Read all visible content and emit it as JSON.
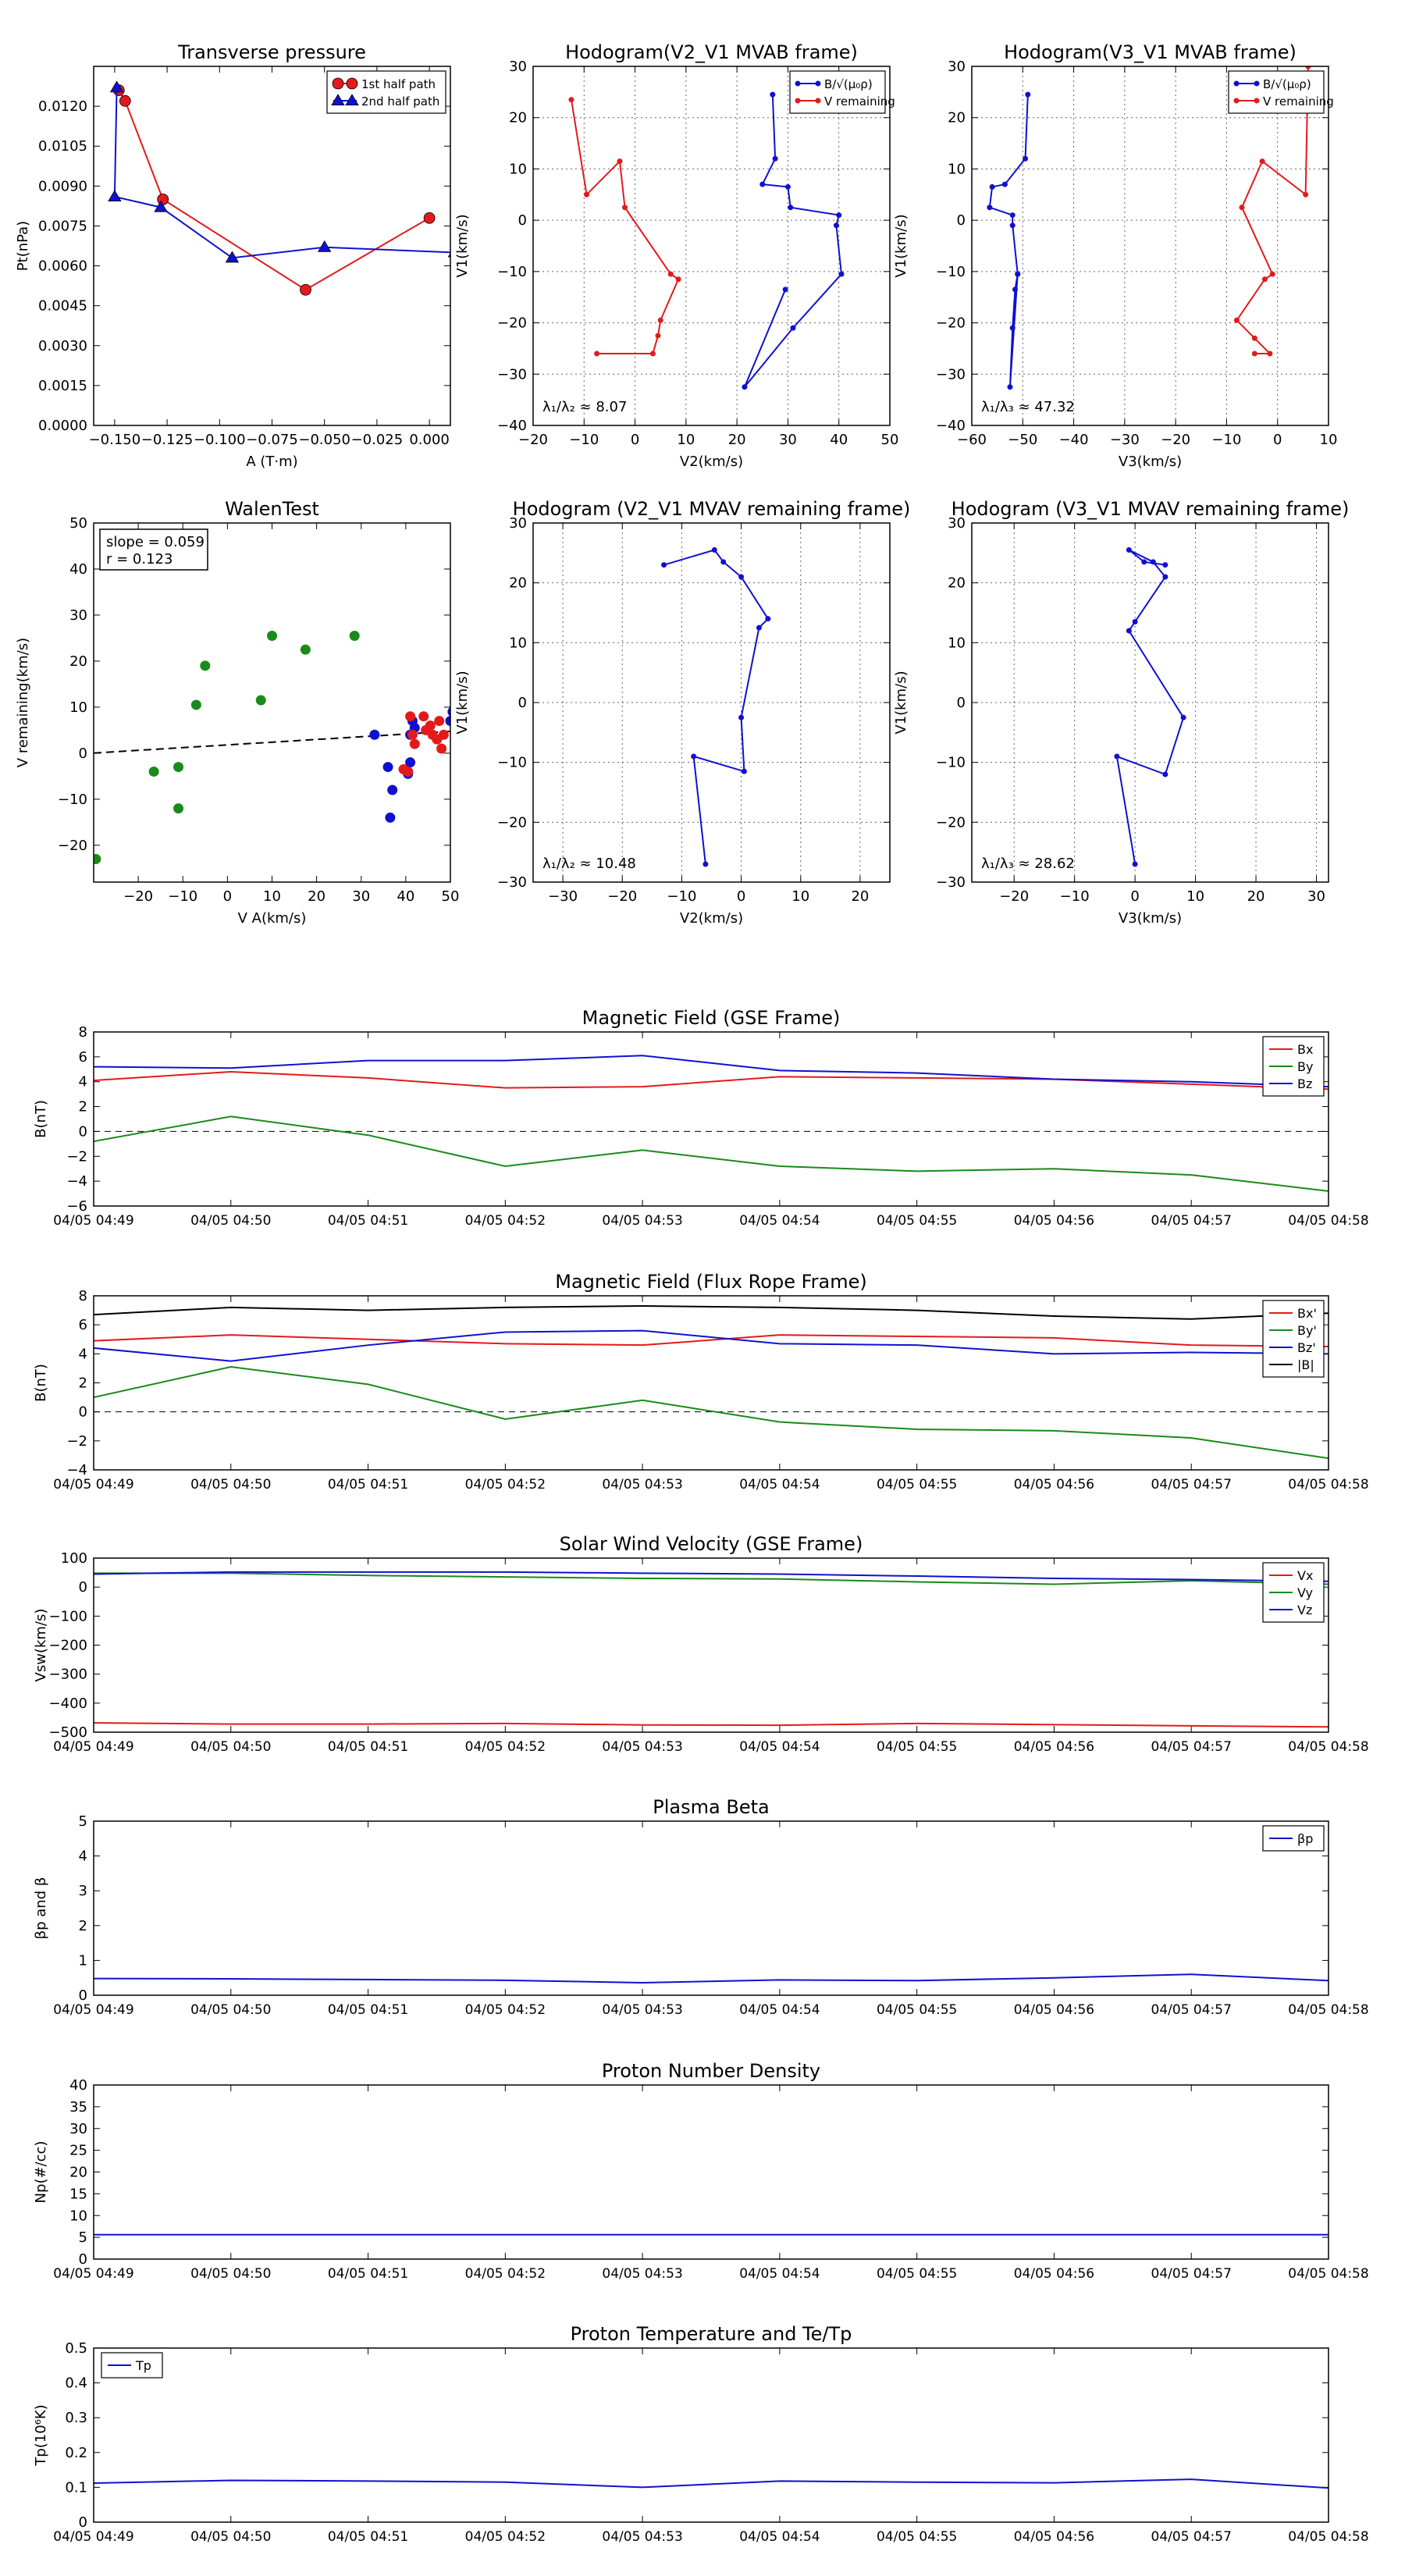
{
  "chart_data": [
    {
      "id": "tp",
      "type": "scatter",
      "title": "Transverse pressure",
      "xlabel": "A (T·m)",
      "ylabel": "Pt(nPa)",
      "xlim": [
        -0.16,
        0.01
      ],
      "ylim": [
        0,
        0.0135
      ],
      "xticks": [
        -0.15,
        -0.125,
        -0.1,
        -0.075,
        -0.05,
        -0.025,
        0.0
      ],
      "xticklabels": [
        "−0.150",
        "−0.125",
        "−0.100",
        "−0.075",
        "−0.050",
        "−0.025",
        "0.000"
      ],
      "yticks": [
        0,
        0.0015,
        0.003,
        0.0045,
        0.006,
        0.0075,
        0.009,
        0.0105,
        0.012
      ],
      "yticklabels": [
        "0.0000",
        "0.0015",
        "0.0030",
        "0.0045",
        "0.0060",
        "0.0075",
        "0.0090",
        "0.0105",
        "0.0120"
      ],
      "grid": false,
      "legend": "top-right",
      "series": [
        {
          "name": "1st half path",
          "color": "#e31a1c",
          "marker": "circle",
          "x": [
            -0.148,
            -0.145,
            -0.127,
            -0.059,
            0.0
          ],
          "y": [
            0.0126,
            0.0122,
            0.0085,
            0.0051,
            0.0078
          ]
        },
        {
          "name": "2nd half path",
          "color": "#1010d0",
          "marker": "triangle",
          "x": [
            -0.149,
            -0.15,
            -0.128,
            -0.094,
            -0.05,
            0.012
          ],
          "y": [
            0.0127,
            0.0086,
            0.0082,
            0.0063,
            0.0067,
            0.0065
          ]
        }
      ]
    },
    {
      "id": "h1",
      "type": "line",
      "title": "Hodogram(V2_V1 MVAB frame)",
      "xlabel": "V2(km/s)",
      "ylabel": "V1(km/s)",
      "xlim": [
        -20,
        50
      ],
      "ylim": [
        -40,
        30
      ],
      "xticks": [
        -20,
        -10,
        0,
        10,
        20,
        30,
        40,
        50
      ],
      "yticks": [
        -40,
        -30,
        -20,
        -10,
        0,
        10,
        20,
        30
      ],
      "grid": true,
      "legend": "top-right",
      "annotation": "λ₁/λ₂ ≈ 8.07",
      "series": [
        {
          "name": "B/√(μ₀ρ)",
          "color": "#1010d0",
          "x": [
            27,
            27.5,
            25,
            30,
            30.5,
            40,
            39.5,
            40.5,
            31,
            21.5,
            29.5
          ],
          "y": [
            24.5,
            12,
            7,
            6.5,
            2.5,
            1,
            -1,
            -10.5,
            -21,
            -32.5,
            -13.5
          ]
        },
        {
          "name": "V remaining",
          "color": "#e31a1c",
          "x": [
            -12.5,
            -9.5,
            -3,
            -2,
            7,
            8.5,
            5,
            4.5,
            3.5,
            -7.5
          ],
          "y": [
            23.5,
            5,
            11.5,
            2.5,
            -10.5,
            -11.5,
            -19.5,
            -22.5,
            -26,
            -26
          ]
        }
      ]
    },
    {
      "id": "h2",
      "type": "line",
      "title": "Hodogram(V3_V1 MVAB frame)",
      "xlabel": "V3(km/s)",
      "ylabel": "V1(km/s)",
      "xlim": [
        -60,
        10
      ],
      "ylim": [
        -40,
        30
      ],
      "xticks": [
        -60,
        -50,
        -40,
        -30,
        -20,
        -10,
        0,
        10
      ],
      "yticks": [
        -40,
        -30,
        -20,
        -10,
        0,
        10,
        20,
        30
      ],
      "grid": true,
      "legend": "top-right",
      "annotation": "λ₁/λ₃ ≈ 47.32",
      "series": [
        {
          "name": "B/√(μ₀ρ)",
          "color": "#1010d0",
          "x": [
            -49,
            -49.5,
            -53.5,
            -56,
            -56.5,
            -52,
            -52,
            -51,
            -51.5,
            -52,
            -52.5,
            -51
          ],
          "y": [
            24.5,
            12,
            7,
            6.5,
            2.5,
            1,
            -1,
            -10.5,
            -13.5,
            -21,
            -32.5,
            -10.5
          ]
        },
        {
          "name": "V remaining",
          "color": "#e31a1c",
          "x": [
            6,
            5.5,
            -3,
            -7,
            -1,
            -2.5,
            -8,
            -4.5,
            -1.5,
            -4.5
          ],
          "y": [
            30,
            5,
            11.5,
            2.5,
            -10.5,
            -11.5,
            -19.5,
            -23,
            -26,
            -26
          ]
        }
      ]
    },
    {
      "id": "wt",
      "type": "scatter",
      "title": "WalenTest",
      "xlabel": "V A(km/s)",
      "ylabel": "V remaining(km/s)",
      "xlim": [
        -30,
        50
      ],
      "ylim": [
        -28,
        50
      ],
      "xticks": [
        -20,
        -10,
        0,
        10,
        20,
        30,
        40,
        50
      ],
      "yticks": [
        -20,
        -10,
        0,
        10,
        20,
        30,
        40,
        50
      ],
      "grid": false,
      "annotation_lines": [
        "slope = 0.059",
        "r = 0.123"
      ],
      "fit_line": {
        "slope": 0.059,
        "intercept": 1.8,
        "color": "#000000",
        "style": "dashed"
      },
      "series": [
        {
          "color": "#1a8a1a",
          "x": [
            -29.5,
            -16.5,
            -11,
            -11,
            -7,
            -5,
            7.5,
            10,
            17.5,
            28.5
          ],
          "y": [
            -23,
            -4,
            -3,
            -12,
            10.5,
            19,
            11.5,
            25.5,
            22.5,
            25.5
          ]
        },
        {
          "color": "#1010d0",
          "x": [
            33,
            36,
            37,
            36.5,
            40.5,
            41,
            41,
            41.5,
            42,
            50,
            50.5
          ],
          "y": [
            4,
            -3,
            -8,
            -14,
            -4.5,
            -2,
            4,
            7,
            5.5,
            7,
            9
          ]
        },
        {
          "color": "#e31a1c",
          "x": [
            41,
            41.5,
            42,
            44,
            45.5,
            46,
            47,
            47.5,
            48,
            48.5,
            40.5,
            39.5,
            44.5
          ],
          "y": [
            8,
            4,
            2,
            8,
            6,
            4,
            3,
            7,
            1,
            4,
            -4,
            -3.5,
            5
          ]
        }
      ]
    },
    {
      "id": "h3",
      "type": "line",
      "title": "Hodogram (V2_V1 MVAV remaining frame)",
      "xlabel": "V2(km/s)",
      "ylabel": "V1(km/s)",
      "xlim": [
        -35,
        25
      ],
      "ylim": [
        -30,
        30
      ],
      "xticks": [
        -30,
        -20,
        -10,
        0,
        10,
        20
      ],
      "yticks": [
        -30,
        -20,
        -10,
        0,
        10,
        20,
        30
      ],
      "grid": true,
      "annotation": "λ₁/λ₂ ≈ 10.48",
      "series": [
        {
          "color": "#1010d0",
          "x": [
            -6,
            -8,
            0.5,
            0,
            3,
            4.5,
            0,
            -3,
            -4.5,
            -13
          ],
          "y": [
            -27,
            -9,
            -11.5,
            -2.5,
            12.5,
            14,
            21,
            23.5,
            25.5,
            23
          ]
        }
      ]
    },
    {
      "id": "h4",
      "type": "line",
      "title": "Hodogram (V3_V1 MVAV remaining frame)",
      "xlabel": "V3(km/s)",
      "ylabel": "V1(km/s)",
      "xlim": [
        -27,
        32
      ],
      "ylim": [
        -30,
        30
      ],
      "xticks": [
        -20,
        -10,
        0,
        10,
        20,
        30
      ],
      "yticks": [
        -30,
        -20,
        -10,
        0,
        10,
        20,
        30
      ],
      "grid": true,
      "annotation": "λ₁/λ₃ ≈ 28.62",
      "series": [
        {
          "color": "#1010d0",
          "x": [
            0,
            -3,
            5,
            8,
            -1,
            0,
            5,
            3,
            -1,
            1.5,
            5
          ],
          "y": [
            -27,
            -9,
            -12,
            -2.5,
            12,
            13.5,
            21,
            23.5,
            25.5,
            23.5,
            23
          ]
        }
      ]
    },
    {
      "id": "mf",
      "type": "line",
      "title": "Magnetic Field (GSE Frame)",
      "xlabel": "",
      "ylabel": "B(nT)",
      "categories": [
        "04/05 04:49",
        "04/05 04:50",
        "04/05 04:51",
        "04/05 04:52",
        "04/05 04:53",
        "04/05 04:54",
        "04/05 04:55",
        "04/05 04:56",
        "04/05 04:57",
        "04/05 04:58"
      ],
      "ylim": [
        -6,
        8
      ],
      "yticks": [
        -6,
        -4,
        -2,
        0,
        2,
        4,
        6,
        8
      ],
      "zero_line": true,
      "grid": false,
      "legend": "top-right",
      "series": [
        {
          "name": "Bx",
          "color": "#e31a1c",
          "values": [
            4.1,
            4.8,
            4.3,
            3.5,
            3.6,
            4.4,
            4.3,
            4.2,
            3.8,
            3.4
          ]
        },
        {
          "name": "By",
          "color": "#1a8a1a",
          "values": [
            -0.8,
            1.2,
            -0.3,
            -2.8,
            -1.5,
            -2.8,
            -3.2,
            -3.0,
            -3.5,
            -4.8
          ]
        },
        {
          "name": "Bz",
          "color": "#1010d0",
          "values": [
            5.2,
            5.1,
            5.7,
            5.7,
            6.1,
            4.9,
            4.7,
            4.2,
            4.0,
            3.6
          ]
        }
      ]
    },
    {
      "id": "mfr",
      "type": "line",
      "title": "Magnetic Field (Flux Rope Frame)",
      "xlabel": "",
      "ylabel": "B(nT)",
      "categories": [
        "04/05 04:49",
        "04/05 04:50",
        "04/05 04:51",
        "04/05 04:52",
        "04/05 04:53",
        "04/05 04:54",
        "04/05 04:55",
        "04/05 04:56",
        "04/05 04:57",
        "04/05 04:58"
      ],
      "ylim": [
        -4,
        8
      ],
      "yticks": [
        -4,
        -2,
        0,
        2,
        4,
        6,
        8
      ],
      "zero_line": true,
      "grid": false,
      "legend": "top-right",
      "series": [
        {
          "name": "Bx'",
          "color": "#e31a1c",
          "values": [
            4.9,
            5.3,
            5.0,
            4.7,
            4.6,
            5.3,
            5.2,
            5.1,
            4.6,
            4.5
          ]
        },
        {
          "name": "By'",
          "color": "#1a8a1a",
          "values": [
            1.0,
            3.1,
            1.9,
            -0.5,
            0.8,
            -0.7,
            -1.2,
            -1.3,
            -1.8,
            -3.2
          ]
        },
        {
          "name": "Bz'",
          "color": "#1010d0",
          "values": [
            4.4,
            3.5,
            4.6,
            5.5,
            5.6,
            4.7,
            4.6,
            4.0,
            4.1,
            4.0
          ]
        },
        {
          "name": "|B|",
          "color": "#000000",
          "values": [
            6.7,
            7.2,
            7.0,
            7.2,
            7.3,
            7.2,
            7.0,
            6.6,
            6.4,
            6.8
          ]
        }
      ]
    },
    {
      "id": "sw",
      "type": "line",
      "title": "Solar Wind Velocity (GSE Frame)",
      "xlabel": "",
      "ylabel": "Vsw(km/s)",
      "categories": [
        "04/05 04:49",
        "04/05 04:50",
        "04/05 04:51",
        "04/05 04:52",
        "04/05 04:53",
        "04/05 04:54",
        "04/05 04:55",
        "04/05 04:56",
        "04/05 04:57",
        "04/05 04:58"
      ],
      "ylim": [
        -500,
        100
      ],
      "yticks": [
        -500,
        -400,
        -300,
        -200,
        -100,
        0,
        100
      ],
      "grid": false,
      "legend": "top-right",
      "series": [
        {
          "name": "Vx",
          "color": "#e31a1c",
          "values": [
            -468,
            -472,
            -472,
            -470,
            -475,
            -476,
            -470,
            -474,
            -478,
            -482
          ]
        },
        {
          "name": "Vy",
          "color": "#1a8a1a",
          "values": [
            48,
            48,
            40,
            35,
            30,
            28,
            18,
            10,
            22,
            10
          ]
        },
        {
          "name": "Vz",
          "color": "#1010d0",
          "values": [
            45,
            52,
            52,
            52,
            48,
            45,
            38,
            30,
            26,
            20
          ]
        }
      ]
    },
    {
      "id": "pb",
      "type": "line",
      "title": "Plasma Beta",
      "xlabel": "",
      "ylabel": "βp and β",
      "categories": [
        "04/05 04:49",
        "04/05 04:50",
        "04/05 04:51",
        "04/05 04:52",
        "04/05 04:53",
        "04/05 04:54",
        "04/05 04:55",
        "04/05 04:56",
        "04/05 04:57",
        "04/05 04:58"
      ],
      "ylim": [
        0,
        5
      ],
      "yticks": [
        0,
        1,
        2,
        3,
        4,
        5
      ],
      "grid": false,
      "legend": "top-right",
      "series": [
        {
          "name": "βp",
          "color": "#1010d0",
          "values": [
            0.48,
            0.47,
            0.45,
            0.43,
            0.36,
            0.44,
            0.42,
            0.5,
            0.6,
            0.42
          ]
        }
      ]
    },
    {
      "id": "np",
      "type": "line",
      "title": "Proton Number Density",
      "xlabel": "",
      "ylabel": "Np(#/cc)",
      "categories": [
        "04/05 04:49",
        "04/05 04:50",
        "04/05 04:51",
        "04/05 04:52",
        "04/05 04:53",
        "04/05 04:54",
        "04/05 04:55",
        "04/05 04:56",
        "04/05 04:57",
        "04/05 04:58"
      ],
      "ylim": [
        0,
        40
      ],
      "yticks": [
        0,
        5,
        10,
        15,
        20,
        25,
        30,
        35,
        40
      ],
      "grid": false,
      "series": [
        {
          "color": "#1010d0",
          "values": [
            5.6,
            5.6,
            5.6,
            5.6,
            5.6,
            5.6,
            5.6,
            5.6,
            5.6,
            5.6
          ]
        }
      ]
    },
    {
      "id": "tpr",
      "type": "line",
      "title": "Proton Temperature and Te/Tp",
      "xlabel": "",
      "ylabel": "Tp(10⁶K)",
      "categories": [
        "04/05 04:49",
        "04/05 04:50",
        "04/05 04:51",
        "04/05 04:52",
        "04/05 04:53",
        "04/05 04:54",
        "04/05 04:55",
        "04/05 04:56",
        "04/05 04:57",
        "04/05 04:58"
      ],
      "ylim": [
        0,
        0.5
      ],
      "yticks": [
        0,
        0.1,
        0.2,
        0.3,
        0.4,
        0.5
      ],
      "grid": false,
      "legend": "top-left",
      "series": [
        {
          "name": "Tp",
          "color": "#1010d0",
          "values": [
            0.112,
            0.12,
            0.118,
            0.115,
            0.1,
            0.118,
            0.115,
            0.113,
            0.123,
            0.098
          ]
        }
      ]
    }
  ]
}
